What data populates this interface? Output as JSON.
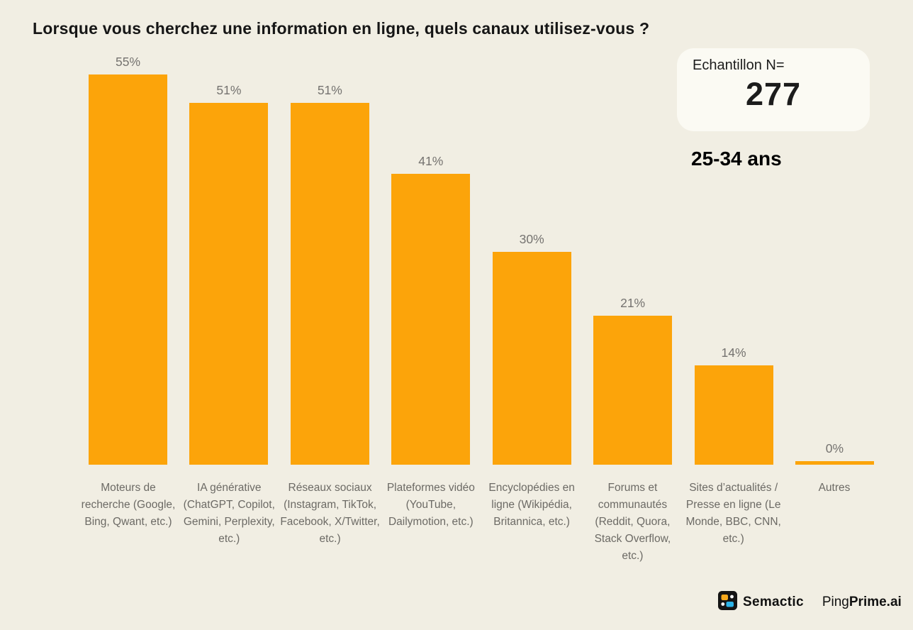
{
  "title": "Lorsque vous cherchez une information en ligne, quels canaux utilisez-vous ?",
  "sample_box": {
    "label": "Echantillon N=",
    "value": "277"
  },
  "age_group": "25-34 ans",
  "chart_data": {
    "type": "bar",
    "title": "Lorsque vous cherchez une information en ligne, quels canaux utilisez-vous ?",
    "categories": [
      "Moteurs de recherche (Google, Bing, Qwant, etc.)",
      "IA générative (ChatGPT, Copilot, Gemini, Perplexity, etc.)",
      "Réseaux sociaux (Instagram, TikTok, Facebook, X/Twitter, etc.)",
      "Plateformes vidéo (YouTube, Dailymotion, etc.)",
      "Encyclopédies en ligne (Wikipédia, Britannica, etc.)",
      "Forums et communautés (Reddit, Quora, Stack Overflow, etc.)",
      "Sites d’actualités / Presse en ligne (Le Monde, BBC, CNN, etc.)",
      "Autres"
    ],
    "values": [
      55,
      51,
      51,
      41,
      30,
      21,
      14,
      0
    ],
    "value_labels": [
      "55%",
      "51%",
      "51%",
      "41%",
      "30%",
      "21%",
      "14%",
      "0%"
    ],
    "xlabel": "",
    "ylabel": "",
    "ylim": [
      0,
      55
    ],
    "grid": false,
    "legend": false,
    "bar_color": "#FCA40A"
  },
  "footer": {
    "semactic_label": "Semactic",
    "pingprime_ping": "Ping",
    "pingprime_prime": "Prime.ai"
  },
  "colors": {
    "background": "#F1EEE3",
    "bar": "#FCA40A",
    "value_label": "#757370",
    "category_label": "#6C6A65",
    "sample_box_bg": "#FBFAF3",
    "semactic_orange": "#F5A81C",
    "semactic_cyan": "#2BB3E8"
  }
}
